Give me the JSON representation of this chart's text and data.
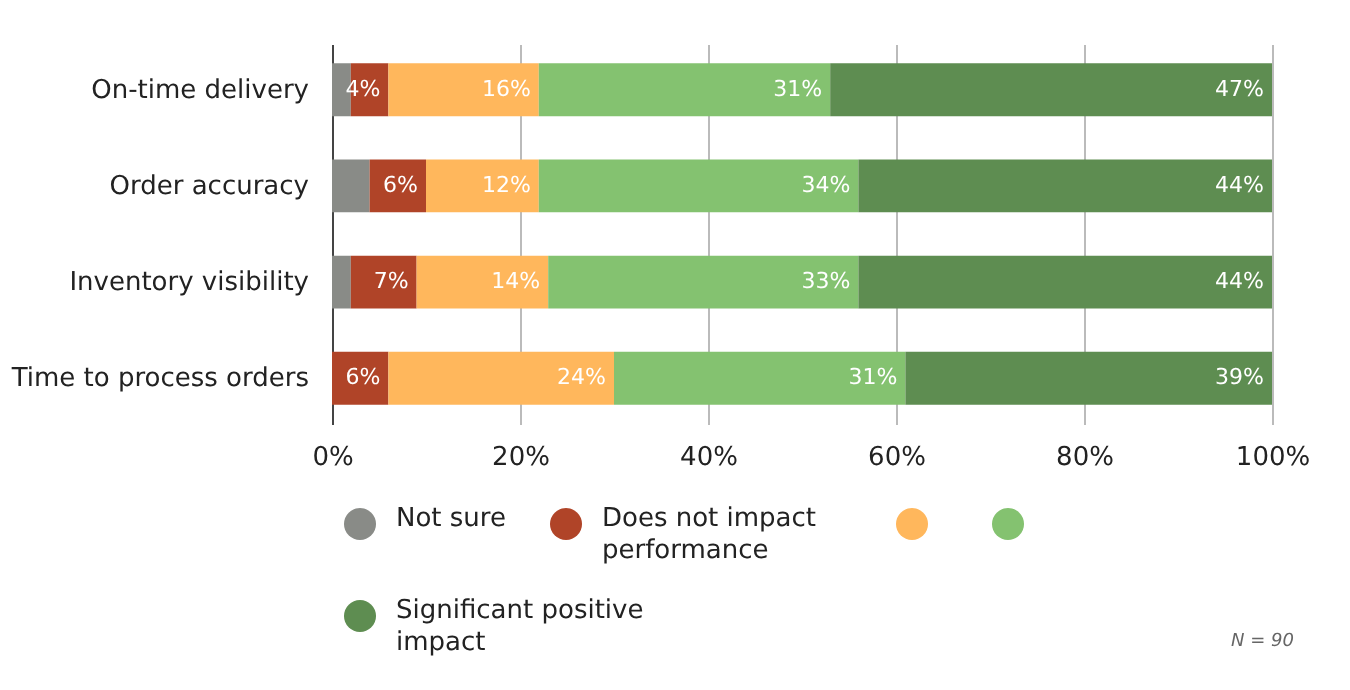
{
  "chart_data": {
    "type": "bar",
    "orientation": "horizontal",
    "stacked": true,
    "categories": [
      "On-time delivery",
      "Order accuracy",
      "Inventory visibility",
      "Time to process orders"
    ],
    "series": [
      {
        "name": "Not sure",
        "color": "#898b87",
        "values": [
          2,
          4,
          2,
          0
        ]
      },
      {
        "name": "Does not impact performance",
        "color": "#b04428",
        "values": [
          4,
          6,
          7,
          6
        ],
        "value_labels": [
          "4%",
          "6%",
          "7%",
          "6%"
        ]
      },
      {
        "color": "#ffb75c",
        "values": [
          16,
          12,
          14,
          24
        ],
        "value_labels": [
          "16%",
          "12%",
          "14%",
          "24%"
        ]
      },
      {
        "color": "#84c270",
        "values": [
          31,
          34,
          33,
          31
        ],
        "value_labels": [
          "31%",
          "34%",
          "33%",
          "31%"
        ]
      },
      {
        "name": "Significant positive impact",
        "color": "#5e8d51",
        "values": [
          47,
          44,
          44,
          39
        ],
        "value_labels": [
          "47%",
          "44%",
          "44%",
          "39%"
        ]
      }
    ],
    "xlim": [
      0,
      100
    ],
    "xticks": [
      {
        "value": 0,
        "label": "0%"
      },
      {
        "value": 20,
        "label": "20%"
      },
      {
        "value": 40,
        "label": "40%"
      },
      {
        "value": 60,
        "label": "60%"
      },
      {
        "value": 80,
        "label": "80%"
      },
      {
        "value": 100,
        "label": "100%"
      }
    ],
    "grid": "x",
    "legend": "bottom",
    "annotations": [
      "N = 90"
    ]
  }
}
